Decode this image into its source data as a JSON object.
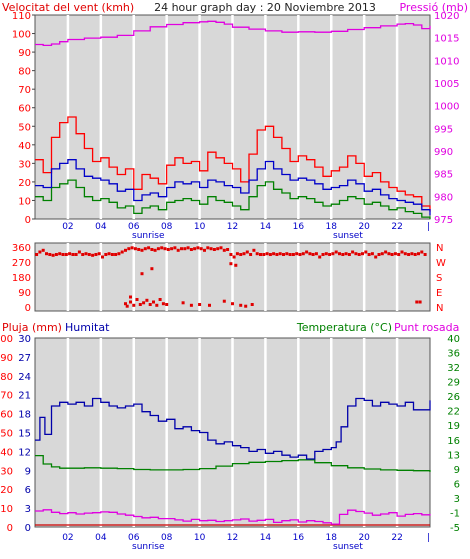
{
  "colors": {
    "plot_bg": "#d8d8d8",
    "grid_major": "#ffffff",
    "wind_gust": "#ff0000",
    "wind_avg": "#0000c8",
    "wind_min": "#008000",
    "pressure": "#e000e0",
    "direction": "#e00000",
    "humidity": "#0000aa",
    "temperature": "#008000",
    "dewpoint": "#e000e0",
    "rain": "#cc0000"
  },
  "header": {
    "left_title": "Velocitat del vent (kmh)",
    "center_title": "24 hour graph day : 20 Noviembre 2013",
    "right_title": "Pressió (mb)"
  },
  "x_axis": {
    "tick_labels": [
      "02",
      "04",
      "06",
      "08",
      "10",
      "12",
      "14",
      "16",
      "18",
      "20",
      "22"
    ],
    "sunrise_label": "sunrise",
    "sunset_label": "sunset"
  },
  "chart_data": [
    {
      "type": "line",
      "title": "24 hour graph day : 20 Noviembre 2013",
      "x_unit": "hour",
      "xlim": [
        0,
        24
      ],
      "left_axis": {
        "label": "Velocitat del vent (kmh)",
        "ylim": [
          0,
          110
        ],
        "ticks": [
          "0",
          "10",
          "20",
          "30",
          "40",
          "50",
          "60",
          "70",
          "80",
          "90",
          "100",
          "110"
        ]
      },
      "right_axis": {
        "label": "Pressió (mb)",
        "ylim": [
          975,
          1020
        ],
        "ticks": [
          "975",
          "980",
          "985",
          "990",
          "995",
          "1000",
          "1005",
          "1010",
          "1015",
          "1020"
        ]
      },
      "series": [
        {
          "axis": "right",
          "x": [
            0,
            0.5,
            1,
            1.5,
            2,
            3,
            4,
            5,
            6,
            7,
            8,
            9,
            10,
            10.5,
            11,
            11.5,
            12,
            13,
            14,
            15,
            16,
            17,
            18,
            19,
            20,
            21,
            22,
            22.5,
            23,
            23.5,
            24
          ],
          "values": [
            1013.5,
            1013.3,
            1013.6,
            1014.1,
            1014.6,
            1014.9,
            1015.1,
            1015.5,
            1016.5,
            1017.4,
            1017.9,
            1018.3,
            1018.5,
            1018.6,
            1018.4,
            1018.0,
            1017.3,
            1016.9,
            1016.5,
            1016.2,
            1016.3,
            1016.2,
            1016.4,
            1016.8,
            1017.2,
            1017.6,
            1018.0,
            1018.1,
            1017.8,
            1017.0,
            1017.6
          ]
        },
        {
          "axis": "left",
          "x": [
            0,
            0.5,
            1,
            1.5,
            2,
            2.5,
            3,
            3.5,
            4,
            4.5,
            5,
            5.5,
            6,
            6.5,
            7,
            7.5,
            8,
            8.5,
            9,
            9.5,
            10,
            10.5,
            11,
            11.5,
            12,
            12.5,
            13,
            13.5,
            14,
            14.5,
            15,
            15.5,
            16,
            16.5,
            17,
            17.5,
            18,
            18.5,
            19,
            19.5,
            20,
            20.5,
            21,
            21.5,
            22,
            22.5,
            23,
            23.5,
            24
          ],
          "values": [
            32,
            25,
            44,
            52,
            55,
            46,
            38,
            31,
            33,
            28,
            24,
            27,
            16,
            24,
            22,
            19,
            29,
            33,
            30,
            31,
            26,
            36,
            33,
            30,
            27,
            20,
            35,
            48,
            50,
            44,
            38,
            31,
            34,
            32,
            28,
            23,
            26,
            28,
            34,
            30,
            23,
            25,
            20,
            17,
            15,
            13,
            12,
            7,
            4
          ]
        },
        {
          "axis": "left",
          "x": [
            0,
            0.5,
            1,
            1.5,
            2,
            2.5,
            3,
            3.5,
            4,
            4.5,
            5,
            5.5,
            6,
            6.5,
            7,
            7.5,
            8,
            8.5,
            9,
            9.5,
            10,
            10.5,
            11,
            11.5,
            12,
            12.5,
            13,
            13.5,
            14,
            14.5,
            15,
            15.5,
            16,
            16.5,
            17,
            17.5,
            18,
            18.5,
            19,
            19.5,
            20,
            20.5,
            21,
            21.5,
            22,
            22.5,
            23,
            23.5,
            24
          ],
          "values": [
            18,
            17,
            27,
            30,
            32,
            27,
            23,
            22,
            21,
            19,
            15,
            16,
            10,
            13,
            14,
            12,
            17,
            20,
            19,
            20,
            17,
            21,
            20,
            18,
            17,
            14,
            21,
            27,
            31,
            27,
            24,
            21,
            22,
            21,
            19,
            16,
            17,
            18,
            21,
            19,
            15,
            16,
            13,
            11,
            10,
            9,
            8,
            5,
            2
          ]
        },
        {
          "axis": "left",
          "x": [
            0,
            0.5,
            1,
            1.5,
            2,
            2.5,
            3,
            3.5,
            4,
            4.5,
            5,
            5.5,
            6,
            6.5,
            7,
            7.5,
            8,
            8.5,
            9,
            9.5,
            10,
            10.5,
            11,
            11.5,
            12,
            12.5,
            13,
            13.5,
            14,
            14.5,
            15,
            15.5,
            16,
            16.5,
            17,
            17.5,
            18,
            18.5,
            19,
            19.5,
            20,
            20.5,
            21,
            21.5,
            22,
            22.5,
            23,
            23.5,
            24
          ],
          "values": [
            12,
            10,
            17,
            19,
            21,
            17,
            12,
            10,
            11,
            9,
            6,
            7,
            3,
            6,
            7,
            5,
            9,
            10,
            11,
            10,
            8,
            12,
            10,
            9,
            7,
            5,
            12,
            18,
            20,
            16,
            14,
            11,
            12,
            11,
            9,
            7,
            8,
            10,
            12,
            11,
            8,
            9,
            7,
            5,
            6,
            4,
            3,
            1,
            0
          ]
        }
      ]
    },
    {
      "type": "scatter",
      "xlim": [
        0,
        24
      ],
      "right_axis": {
        "ticks": [
          "N",
          "W",
          "S",
          "E",
          "N"
        ]
      },
      "left_axis": {
        "ylim": [
          0,
          360
        ],
        "ticks": [
          "0",
          "90",
          "180",
          "270",
          "360"
        ]
      },
      "x": [
        0.1,
        0.3,
        0.5,
        0.7,
        0.9,
        1.1,
        1.3,
        1.5,
        1.7,
        1.9,
        2.1,
        2.3,
        2.5,
        2.7,
        2.9,
        3.1,
        3.3,
        3.5,
        3.7,
        3.9,
        4.1,
        4.3,
        4.5,
        4.7,
        4.9,
        5.1,
        5.3,
        5.5,
        5.7,
        5.9,
        6.1,
        6.3,
        6.5,
        6.7,
        6.9,
        7.1,
        7.3,
        7.5,
        7.7,
        7.9,
        8.1,
        8.3,
        8.5,
        8.7,
        8.9,
        9.1,
        9.3,
        9.5,
        9.7,
        9.9,
        10.1,
        10.3,
        10.5,
        10.7,
        10.9,
        11.1,
        11.3,
        11.5,
        11.7,
        11.9,
        12.1,
        12.3,
        12.5,
        12.7,
        12.9,
        13.1,
        13.3,
        13.5,
        13.7,
        13.9,
        14.1,
        14.3,
        14.5,
        14.7,
        14.9,
        15.1,
        15.3,
        15.5,
        15.7,
        15.9,
        16.1,
        16.3,
        16.5,
        16.7,
        16.9,
        17.1,
        17.3,
        17.5,
        17.7,
        17.9,
        18.1,
        18.3,
        18.5,
        18.7,
        18.9,
        19.1,
        19.3,
        19.5,
        19.7,
        19.9,
        20.1,
        20.3,
        20.5,
        20.7,
        20.9,
        21.1,
        21.3,
        21.5,
        21.7,
        21.9,
        22.1,
        22.3,
        22.5,
        22.7,
        22.9,
        23.1,
        23.3,
        23.5,
        23.7,
        5.5,
        5.6,
        5.8,
        6.0,
        6.2,
        6.4,
        6.6,
        6.8,
        7.0,
        7.2,
        7.4,
        7.6,
        7.8,
        8.0,
        9.0,
        9.5,
        10.0,
        10.6,
        11.5,
        12.0,
        12.5,
        12.8,
        13.2,
        5.8,
        6.5,
        7.1,
        12.2,
        11.9,
        23.2,
        23.4
      ],
      "values": [
        315,
        330,
        340,
        320,
        315,
        310,
        315,
        320,
        315,
        315,
        320,
        315,
        315,
        330,
        315,
        320,
        315,
        310,
        315,
        320,
        300,
        315,
        320,
        315,
        315,
        320,
        330,
        340,
        350,
        355,
        350,
        345,
        340,
        350,
        355,
        345,
        340,
        350,
        355,
        350,
        345,
        350,
        355,
        340,
        350,
        350,
        355,
        345,
        350,
        355,
        350,
        340,
        355,
        350,
        345,
        350,
        355,
        340,
        345,
        315,
        300,
        320,
        315,
        320,
        330,
        315,
        340,
        320,
        315,
        315,
        320,
        315,
        320,
        315,
        320,
        315,
        320,
        315,
        315,
        320,
        315,
        320,
        330,
        320,
        315,
        320,
        300,
        315,
        320,
        315,
        320,
        330,
        320,
        315,
        320,
        315,
        330,
        320,
        315,
        320,
        330,
        315,
        320,
        300,
        315,
        320,
        330,
        320,
        315,
        320,
        315,
        330,
        320,
        315,
        320,
        315,
        320,
        330,
        315,
        20,
        5,
        30,
        10,
        45,
        15,
        25,
        40,
        15,
        30,
        10,
        45,
        20,
        15,
        25,
        10,
        15,
        10,
        35,
        20,
        10,
        5,
        15,
        60,
        200,
        230,
        250,
        260,
        30,
        30
      ]
    },
    {
      "type": "line",
      "xlim": [
        0,
        24
      ],
      "left_axis": {
        "label": "Pluja (mm)",
        "ylim": [
          0,
          100
        ],
        "ticks": [
          "0",
          "10",
          "20",
          "30",
          "40",
          "50",
          "60",
          "70",
          "80",
          "90",
          "100"
        ]
      },
      "left_axis_2": {
        "label": "Humitat",
        "ylim": [
          0,
          100
        ],
        "ticks": [
          "0",
          "3",
          "6",
          "9",
          "12",
          "15",
          "18",
          "21",
          "24",
          "27",
          "30"
        ]
      },
      "right_axis": {
        "label": "Temperatura (°C)",
        "label_2": "Punt rosada",
        "ylim": [
          -5,
          40
        ],
        "ticks": [
          "-5",
          "-1",
          "3",
          "6",
          "9",
          "13",
          "16",
          "19",
          "22",
          "26",
          "29",
          "32",
          "36",
          "40"
        ]
      },
      "series": [
        {
          "axis": "left",
          "x": [
            0,
            0.3,
            0.6,
            1,
            1.5,
            2,
            2.5,
            3,
            3.5,
            4,
            4.5,
            5,
            5.5,
            6,
            6.5,
            7,
            7.5,
            8,
            8.5,
            9,
            9.5,
            10,
            10.5,
            11,
            11.5,
            12,
            12.5,
            13,
            13.5,
            14,
            14.5,
            15,
            15.5,
            16,
            16.5,
            17,
            17.5,
            18,
            18.3,
            18.6,
            19,
            19.5,
            20,
            20.5,
            21,
            21.5,
            22,
            22.5,
            23,
            23.5,
            24
          ],
          "values": [
            46,
            58,
            49,
            64,
            66,
            65,
            66,
            64,
            68,
            66,
            64,
            63,
            64,
            65,
            61,
            59,
            56,
            57,
            52,
            53,
            51,
            50,
            46,
            44,
            45,
            43,
            42,
            40,
            41,
            39,
            40,
            38,
            37,
            38,
            36,
            40,
            41,
            42,
            45,
            53,
            64,
            68,
            67,
            64,
            66,
            65,
            64,
            66,
            62,
            62,
            67
          ]
        },
        {
          "axis": "right",
          "x": [
            0,
            0.5,
            1,
            1.5,
            2,
            3,
            4,
            5,
            6,
            7,
            8,
            9,
            10,
            11,
            12,
            13,
            14,
            15,
            16,
            17,
            18,
            19,
            20,
            21,
            22,
            23,
            24
          ],
          "values": [
            12,
            10,
            9.3,
            9.0,
            9.0,
            9.1,
            9.0,
            8.9,
            8.7,
            8.6,
            8.6,
            8.7,
            8.9,
            9.5,
            10.1,
            10.4,
            10.6,
            10.8,
            11.0,
            10.3,
            9.6,
            9.1,
            8.8,
            8.6,
            8.5,
            8.4,
            8.1
          ]
        },
        {
          "axis": "right",
          "x": [
            0,
            0.5,
            1,
            1.5,
            2,
            2.5,
            3,
            3.5,
            4,
            4.5,
            5,
            5.5,
            6,
            6.5,
            7,
            7.5,
            8,
            8.5,
            9,
            9.5,
            10,
            10.5,
            11,
            11.5,
            12,
            12.5,
            13,
            13.5,
            14,
            14.5,
            15,
            15.5,
            16,
            16.5,
            17,
            17.5,
            18,
            18.5,
            19,
            19.5,
            20,
            20.5,
            21,
            21.5,
            22,
            22.5,
            23,
            23.5,
            24
          ],
          "values": [
            -1.2,
            -0.9,
            -1.5,
            -1.8,
            -1.6,
            -1.9,
            -1.7,
            -1.6,
            -1.4,
            -1.5,
            -1.9,
            -2.2,
            -2.5,
            -2.8,
            -2.7,
            -3.0,
            -3.0,
            -3.3,
            -3.6,
            -3.2,
            -3.5,
            -3.4,
            -3.7,
            -3.5,
            -3.3,
            -3.1,
            -3.6,
            -3.4,
            -3.2,
            -3.9,
            -3.5,
            -3.3,
            -3.8,
            -3.5,
            -3.7,
            -4.0,
            -4.3,
            -2.0,
            -1.0,
            -1.3,
            -1.7,
            -2.2,
            -1.9,
            -1.6,
            -2.4,
            -2.0,
            -1.8,
            -2.1,
            -1.9
          ]
        },
        {
          "axis": "left",
          "x": [
            0,
            24
          ],
          "values": [
            0,
            0
          ]
        }
      ]
    }
  ]
}
